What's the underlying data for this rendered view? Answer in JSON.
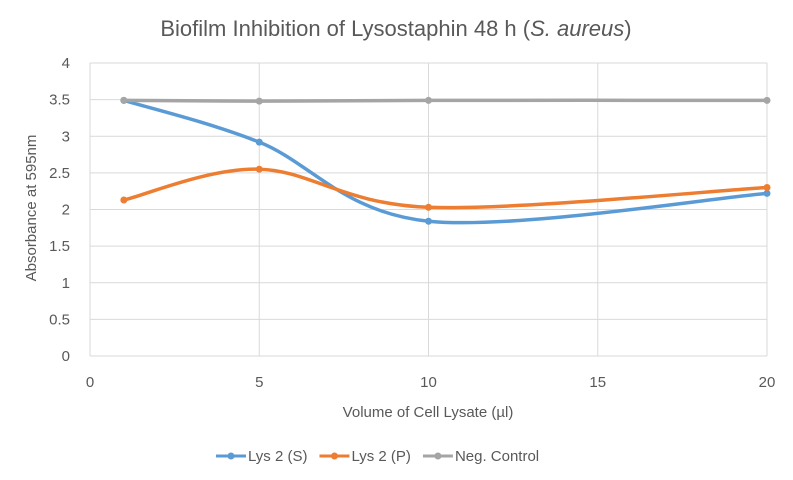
{
  "chart_data": {
    "type": "scatter",
    "title": "Biofilm Inhibition of Lysostaphin 48 h (",
    "title_italic": "S. aureus",
    "title_suffix": ")",
    "xlabel": "Volume of Cell Lysate (µl)",
    "ylabel": "Absorbance at 595nm",
    "xlim": [
      0,
      20
    ],
    "ylim": [
      0,
      4
    ],
    "x_ticks": [
      "0",
      "5",
      "10",
      "15",
      "20"
    ],
    "y_ticks": [
      "0",
      "0.5",
      "1",
      "1.5",
      "2",
      "2.5",
      "3",
      "3.5",
      "4"
    ],
    "grid": true,
    "legend_position": "bottom",
    "smooth_lines": true,
    "x": [
      1,
      5,
      10,
      20
    ],
    "series": [
      {
        "name": "Lys 2 (S)",
        "color": "#5B9BD5",
        "values": [
          3.49,
          2.92,
          1.84,
          2.22
        ]
      },
      {
        "name": "Lys 2 (P)",
        "color": "#ED7D31",
        "values": [
          2.13,
          2.55,
          2.03,
          2.3
        ]
      },
      {
        "name": "Neg. Control",
        "color": "#A5A5A5",
        "values": [
          3.49,
          3.48,
          3.49,
          3.49
        ]
      }
    ]
  }
}
